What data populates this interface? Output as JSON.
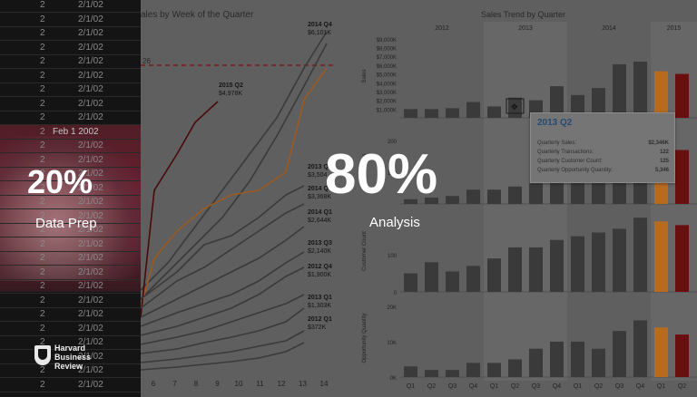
{
  "spreadsheet": {
    "rows": [
      {
        "c1": "2",
        "c2": "2/1/02"
      },
      {
        "c1": "2",
        "c2": "2/1/02"
      },
      {
        "c1": "2",
        "c2": "2/1/02"
      },
      {
        "c1": "2",
        "c2": "2/1/02"
      },
      {
        "c1": "2",
        "c2": "2/1/02"
      },
      {
        "c1": "2",
        "c2": "2/1/02"
      },
      {
        "c1": "2",
        "c2": "2/1/02"
      },
      {
        "c1": "2",
        "c2": "2/1/02"
      },
      {
        "c1": "2",
        "c2": "2/1/02"
      },
      {
        "c1": "2",
        "c2": "Feb 1 2002"
      },
      {
        "c1": "2",
        "c2": "2/1/02"
      },
      {
        "c1": "2",
        "c2": "2/1/02"
      },
      {
        "c1": "2",
        "c2": "2/1/02"
      },
      {
        "c1": "2",
        "c2": "2/1/02"
      },
      {
        "c1": "2",
        "c2": "2/1/02"
      },
      {
        "c1": "2",
        "c2": "2/1/02"
      },
      {
        "c1": "2",
        "c2": "2/1/02"
      },
      {
        "c1": "2",
        "c2": "2/1/02"
      },
      {
        "c1": "2",
        "c2": "2/1/02"
      },
      {
        "c1": "2",
        "c2": "2/1/02"
      },
      {
        "c1": "2",
        "c2": "2/1/02"
      },
      {
        "c1": "2",
        "c2": "2/1/02"
      },
      {
        "c1": "2",
        "c2": "2/1/02"
      },
      {
        "c1": "2",
        "c2": "2/1/02"
      },
      {
        "c1": "2",
        "c2": "2/1/02"
      },
      {
        "c1": "2",
        "c2": "2/1/02"
      },
      {
        "c1": "2",
        "c2": "2/1/02"
      },
      {
        "c1": "2",
        "c2": "2/1/02"
      }
    ]
  },
  "overlay": {
    "left_pct": "20%",
    "left_caption": "Data Prep",
    "right_pct": "80%",
    "right_caption": "Analysis"
  },
  "logo": {
    "line1": "Harvard",
    "line2": "Business",
    "line3": "Review"
  },
  "line_chart": {
    "title": "ales by Week of the Quarter",
    "ref_label": "26",
    "x_ticks": [
      "6",
      "7",
      "8",
      "9",
      "10",
      "11",
      "12",
      "13",
      "14"
    ],
    "labels": [
      {
        "q": "2014 Q4",
        "v": "$6,101K"
      },
      {
        "q": "2015 Q2",
        "v": "$4,978K"
      },
      {
        "q": "2013 Q",
        "v": "$3,504"
      },
      {
        "q": "2014 Q",
        "v": "$3,368K"
      },
      {
        "q": "2014 Q1",
        "v": "$2,644K"
      },
      {
        "q": "2013 Q3",
        "v": "$2,140K"
      },
      {
        "q": "2012 Q4",
        "v": "$1,900K"
      },
      {
        "q": "2013 Q1",
        "v": "$1,303K"
      },
      {
        "q": "2012 Q1",
        "v": "$372K"
      }
    ]
  },
  "bar_chart": {
    "title": "Sales Trend by Quarter",
    "years": [
      "2012",
      "2013",
      "2014",
      "2015"
    ],
    "sales_ticks": [
      "$9,000K",
      "$8,000K",
      "$7,000K",
      "$6,000K",
      "$5,000K",
      "$4,000K",
      "$3,000K",
      "$2,000K",
      "$1,000K"
    ],
    "y_titles": [
      "Sales",
      "Transactions",
      "Customer Count",
      "Opportunity Quantity"
    ],
    "panel3_ticks": [
      "100",
      "0"
    ],
    "panel4_ticks": [
      "20K",
      "10K",
      "0K"
    ],
    "panel2_ticks": [
      "200",
      "100"
    ],
    "quarters": [
      "Q1",
      "Q2",
      "Q3",
      "Q4",
      "Q1",
      "Q2",
      "Q3",
      "Q4",
      "Q1",
      "Q2",
      "Q3",
      "Q4",
      "Q1",
      "Q2"
    ],
    "sales": [
      1.0,
      1.0,
      1.1,
      1.8,
      1.3,
      2.3,
      2.0,
      3.6,
      2.6,
      3.4,
      6.1,
      6.4,
      5.3,
      5.0
    ],
    "transactions": [
      15,
      20,
      25,
      45,
      45,
      55,
      65,
      80,
      95,
      110,
      130,
      160,
      180,
      170
    ],
    "customers": [
      50,
      80,
      55,
      70,
      90,
      120,
      120,
      140,
      150,
      160,
      170,
      200,
      190,
      180
    ],
    "opportunity": [
      3,
      2,
      2,
      4,
      4,
      5,
      8,
      10,
      10,
      8,
      13,
      16,
      14,
      12
    ],
    "colors": {
      "gray": "#3a3a3a",
      "orange": "#b86a1f",
      "red": "#6a0f0f",
      "dark": "#8a1a1a"
    }
  },
  "tooltip": {
    "title": "2013 Q2",
    "rows": [
      {
        "k": "Quarterly Sales:",
        "v": "$2,346K"
      },
      {
        "k": "Quarterly Transactions:",
        "v": "122"
      },
      {
        "k": "Quarterly Customer Count:",
        "v": "125"
      },
      {
        "k": "Quarterly Opportunity Quantity:",
        "v": "5,346"
      }
    ]
  }
}
